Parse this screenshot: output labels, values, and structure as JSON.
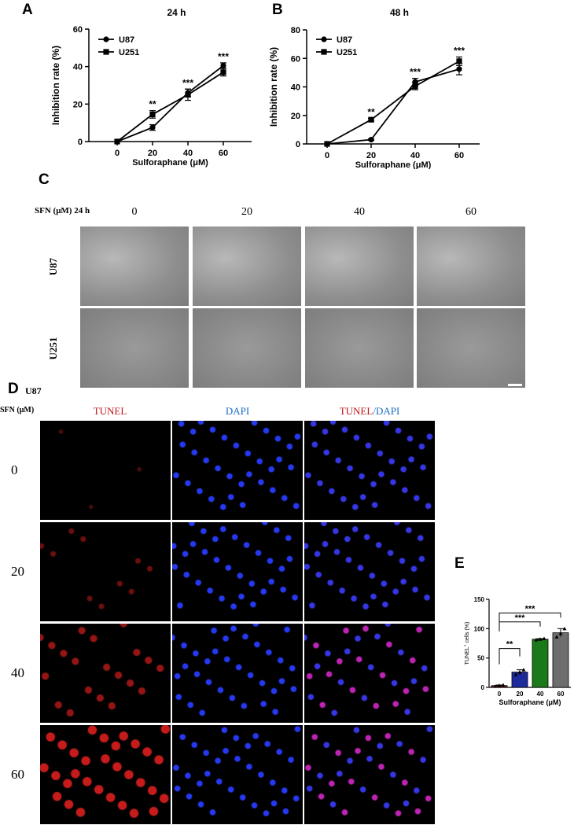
{
  "panels": {
    "A": "A",
    "B": "B",
    "C": "C",
    "D": "D",
    "E": "E"
  },
  "chart_data": [
    {
      "type": "line",
      "panel": "A",
      "title": "24 h",
      "xlabel": "Sulforaphane (μM)",
      "ylabel": "Inhibition rate (%)",
      "x": [
        0,
        20,
        40,
        60
      ],
      "xticks": [
        "0",
        "20",
        "40",
        "60"
      ],
      "ylim": [
        0,
        60
      ],
      "yticks": [
        0,
        20,
        40,
        60
      ],
      "series": [
        {
          "name": "U87",
          "marker": "circle",
          "values": [
            0,
            7.5,
            26,
            40.5
          ],
          "errors": [
            0,
            1.5,
            2,
            1.5
          ]
        },
        {
          "name": "U251",
          "marker": "square",
          "values": [
            0,
            14.5,
            25,
            37
          ],
          "errors": [
            0,
            2,
            3,
            2
          ]
        }
      ],
      "annotations": [
        {
          "x": 20,
          "text": "**"
        },
        {
          "x": 40,
          "text": "***"
        },
        {
          "x": 60,
          "text": "***"
        }
      ]
    },
    {
      "type": "line",
      "panel": "B",
      "title": "48 h",
      "xlabel": "Sulforaphane (μM)",
      "ylabel": "Inhibition rate (%)",
      "x": [
        0,
        20,
        40,
        60
      ],
      "xticks": [
        "0",
        "20",
        "40",
        "60"
      ],
      "ylim": [
        0,
        80
      ],
      "yticks": [
        0,
        20,
        40,
        60,
        80
      ],
      "series": [
        {
          "name": "U87",
          "marker": "circle",
          "values": [
            0,
            3,
            43.5,
            52.5
          ],
          "errors": [
            0,
            0.5,
            2.5,
            4
          ]
        },
        {
          "name": "U251",
          "marker": "square",
          "values": [
            0,
            17,
            40.5,
            58
          ],
          "errors": [
            0,
            1,
            2.5,
            3
          ]
        }
      ],
      "annotations": [
        {
          "x": 20,
          "text": "**"
        },
        {
          "x": 40,
          "text": "***"
        },
        {
          "x": 60,
          "text": "***"
        }
      ]
    },
    {
      "type": "bar",
      "panel": "E",
      "xlabel": "Sulforaphane (μM)",
      "ylabel_main": "TUNEL",
      "ylabel_sup": "+",
      "ylabel_rest": " cells (%)",
      "categories": [
        "0",
        "20",
        "40",
        "60"
      ],
      "values": [
        3,
        26,
        82,
        93
      ],
      "points": [
        [
          2,
          3,
          4
        ],
        [
          22,
          26,
          30
        ],
        [
          81,
          82,
          83
        ],
        [
          86,
          92,
          100
        ]
      ],
      "colors": [
        "#8b1a1a",
        "#1c2a9c",
        "#1a7a1a",
        "#6e6e6e"
      ],
      "ylim": [
        0,
        150
      ],
      "yticks": [
        0,
        50,
        100,
        150
      ],
      "comparisons": [
        {
          "from": "0",
          "to": "20",
          "text": "**"
        },
        {
          "from": "0",
          "to": "40",
          "text": "***"
        },
        {
          "from": "0",
          "to": "60",
          "text": "***"
        }
      ]
    }
  ],
  "panelC": {
    "header": "SFN (μM)  24 h",
    "concentrations": [
      "0",
      "20",
      "40",
      "60"
    ],
    "rows": [
      "U87",
      "U251"
    ]
  },
  "panelD": {
    "cell_line": "U87",
    "header": "SFN (μM)",
    "channels": {
      "tunel": "TUNEL",
      "dapi": "DAPI",
      "merge_sep": "/"
    },
    "rows": [
      "0",
      "20",
      "40",
      "60"
    ]
  }
}
